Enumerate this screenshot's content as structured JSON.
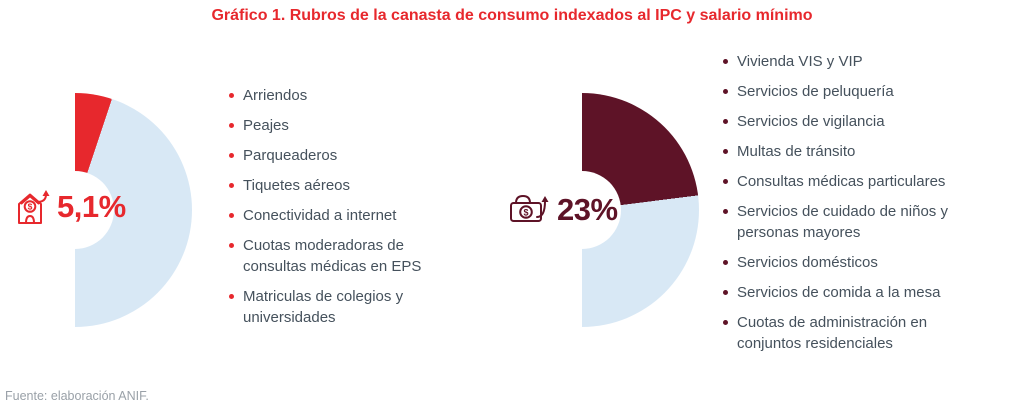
{
  "title": "Gráfico 1. Rubros de la canasta de consumo indexados al IPC y salario mínimo",
  "source": "Fuente: elaboración ANIF.",
  "colors": {
    "red": "#e7282d",
    "maroon": "#5e1327",
    "track_blue": "#d8e8f5",
    "text": "#45515c",
    "gray": "#9aa1a8"
  },
  "chart_data": [
    {
      "type": "pie",
      "shape": "right-half-donut",
      "label": "5,1%",
      "value_pct": 5.1,
      "remainder_pct": 94.9,
      "accent_color": "#e7282d",
      "remainder_color": "#d8e8f5",
      "icon": "house-arrow-up-icon",
      "items": [
        "Arriendos",
        "Peajes",
        "Parqueaderos",
        "Tiquetes aéreos",
        "Conectividad a internet",
        "Cuotas moderadoras de consultas médicas en EPS",
        "Matriculas de colegios y universidades"
      ]
    },
    {
      "type": "pie",
      "shape": "right-half-donut",
      "label": "23%",
      "value_pct": 23,
      "remainder_pct": 77,
      "accent_color": "#5e1327",
      "remainder_color": "#d8e8f5",
      "icon": "banknote-arrow-up-icon",
      "items": [
        "Vivienda VIS y VIP",
        "Servicios de peluquería",
        "Servicios de vigilancia",
        "Multas de tránsito",
        "Consultas médicas particulares",
        "Servicios de cuidado de niños y personas mayores",
        "Servicios domésticos",
        "Servicios de comida a la mesa",
        "Cuotas de administración en conjuntos residenciales"
      ]
    }
  ]
}
